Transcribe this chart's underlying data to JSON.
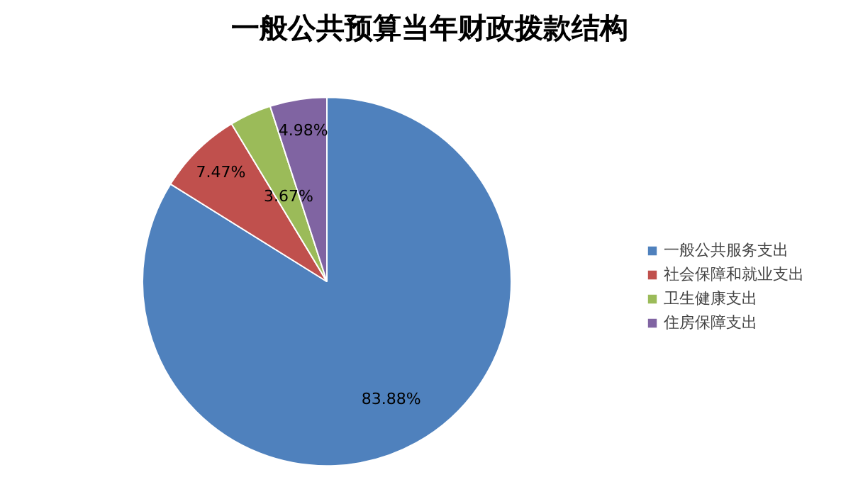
{
  "chart_data": {
    "type": "pie",
    "title": "一般公共预算当年财政拨款结构",
    "categories": [
      "一般公共服务支出",
      "社会保障和就业支出",
      "卫生健康支出",
      "住房保障支出"
    ],
    "values": [
      83.88,
      7.47,
      3.67,
      4.98
    ],
    "value_labels": [
      "83.88%",
      "7.47%",
      "3.67%",
      "4.98%"
    ],
    "colors": [
      "#4f81bd",
      "#c0504d",
      "#9bbb59",
      "#8064a2"
    ],
    "legend": "right"
  }
}
